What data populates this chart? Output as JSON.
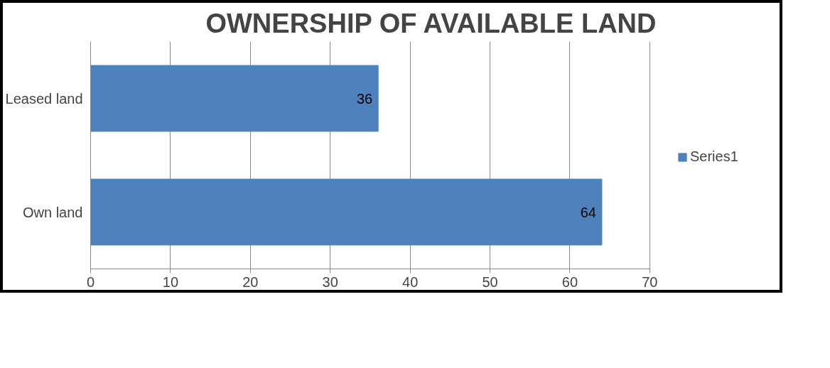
{
  "chart_data": {
    "type": "bar",
    "orientation": "horizontal",
    "title": "OWNERSHIP OF AVAILABLE LAND",
    "categories": [
      "Leased land",
      "Own land"
    ],
    "series": [
      {
        "name": "Series1",
        "color": "#4f81bd",
        "values": [
          36,
          64
        ]
      }
    ],
    "xlim": [
      0,
      70
    ],
    "xticks": [
      0,
      10,
      20,
      30,
      40,
      50,
      60,
      70
    ],
    "grid": "x",
    "legend": "right",
    "data_labels": true
  }
}
